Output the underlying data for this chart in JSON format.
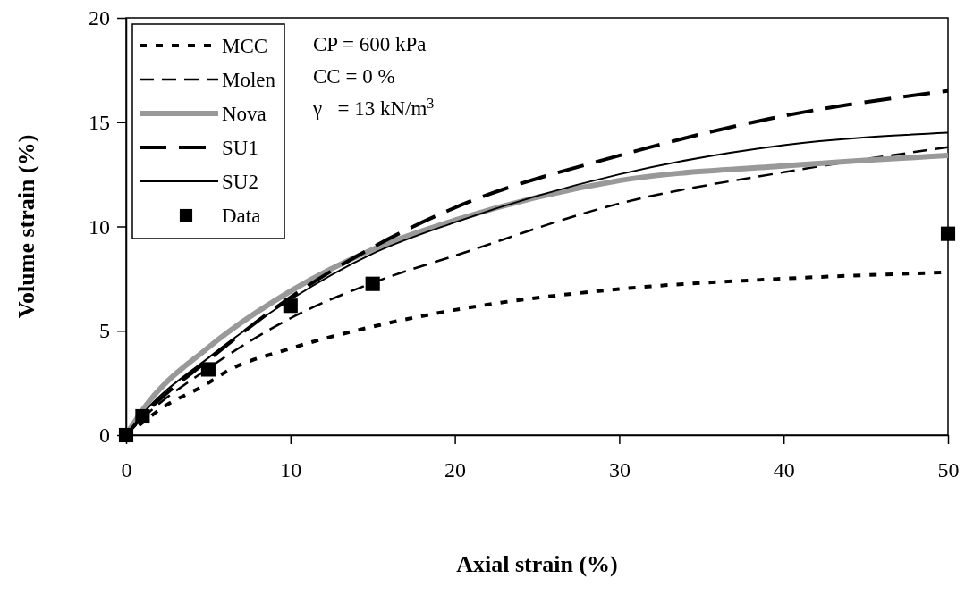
{
  "chart_data": {
    "type": "line",
    "xlabel": "Axial strain (%)",
    "ylabel": "Volume strain (%)",
    "xlim": [
      0,
      50
    ],
    "xticks": [
      0,
      10,
      20,
      30,
      40,
      50
    ],
    "ylim": [
      0,
      20
    ],
    "yticks": [
      0,
      5,
      10,
      15,
      20
    ],
    "grid": false,
    "legend": "top left",
    "annotations": [
      "CP = 600 kPa",
      "CC = 0 %",
      "γ   = 13 kN/m$^{3}$"
    ],
    "series": [
      {
        "name": "MCC",
        "color": "#000000",
        "line_style": "dotted",
        "x": [
          0,
          1,
          2,
          5,
          6,
          10,
          15,
          20,
          30,
          40,
          50
        ],
        "values": [
          0,
          0.6,
          1.2,
          2.5,
          3.0,
          4.15,
          5.2,
          6.0,
          7.0,
          7.5,
          7.8
        ]
      },
      {
        "name": "Molen",
        "color": "#000000",
        "line_style": "dashed",
        "x": [
          0,
          1,
          5,
          10,
          15,
          20,
          30,
          40,
          50
        ],
        "values": [
          0,
          0.8,
          3.2,
          5.6,
          7.3,
          8.6,
          11.1,
          12.6,
          13.8
        ]
      },
      {
        "name": "Nova",
        "color": "#999999",
        "line_style": "solid",
        "x": [
          0,
          1,
          5,
          10,
          15,
          20,
          30,
          40,
          50
        ],
        "values": [
          0,
          1.2,
          4.2,
          6.9,
          8.9,
          10.3,
          12.2,
          12.9,
          13.4
        ]
      },
      {
        "name": "SU1",
        "color": "#000000",
        "line_style": "dashed",
        "x": [
          0,
          1,
          5,
          10,
          15,
          20,
          30,
          40,
          50
        ],
        "values": [
          0,
          0.9,
          3.6,
          6.6,
          9.0,
          10.9,
          13.4,
          15.3,
          16.5
        ]
      },
      {
        "name": "SU2",
        "color": "#000000",
        "line_style": "solid",
        "x": [
          0,
          1,
          5,
          10,
          15,
          20,
          30,
          40,
          50
        ],
        "values": [
          0,
          1.0,
          3.7,
          6.5,
          8.7,
          10.2,
          12.5,
          13.9,
          14.5
        ]
      },
      {
        "name": "Data",
        "type": "scatter",
        "marker": "square",
        "color": "#000000",
        "x": [
          0,
          1,
          5,
          10,
          15,
          50
        ],
        "values": [
          0,
          0.9,
          3.15,
          6.2,
          7.25,
          9.65
        ]
      }
    ]
  }
}
